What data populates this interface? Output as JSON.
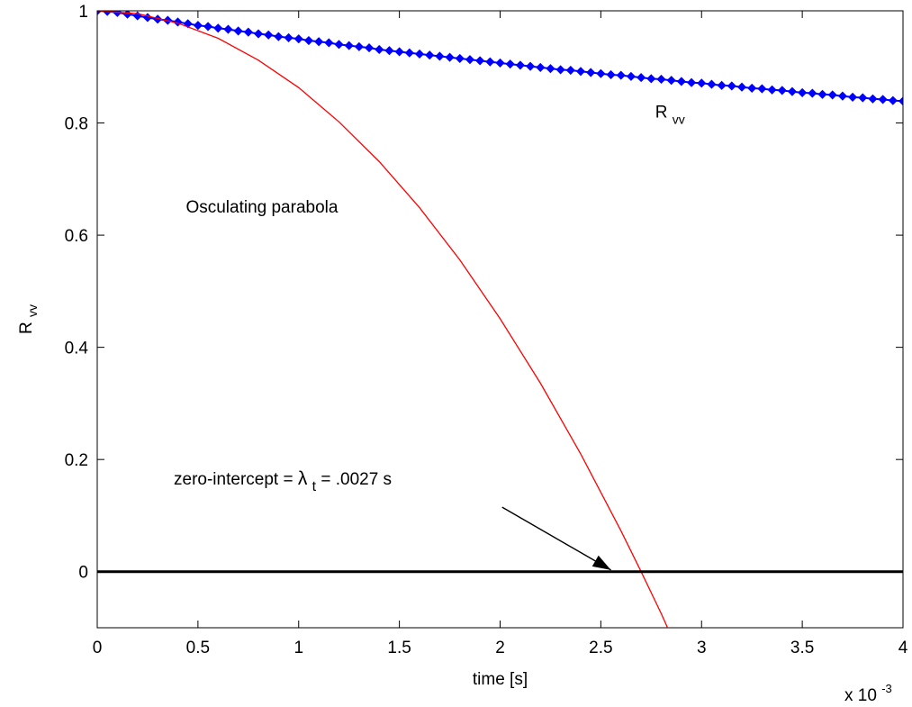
{
  "chart_data": {
    "type": "line",
    "title": "",
    "xlabel": "time [s]",
    "ylabel": {
      "main": "R",
      "sub": "vv"
    },
    "x_exponent": {
      "prefix": "x 10",
      "power": "-3"
    },
    "xlim": [
      0,
      0.004
    ],
    "ylim": [
      -0.1,
      1
    ],
    "x_ticks": [
      0,
      0.0005,
      0.001,
      0.0015,
      0.002,
      0.0025,
      0.003,
      0.0035,
      0.004
    ],
    "x_tick_labels": [
      "0",
      "0.5",
      "1",
      "1.5",
      "2",
      "2.5",
      "3",
      "3.5",
      "4"
    ],
    "y_ticks": [
      0,
      0.2,
      0.4,
      0.6,
      0.8,
      1
    ],
    "y_tick_labels": [
      "0",
      "0.2",
      "0.4",
      "0.6",
      "0.8",
      "1"
    ],
    "grid": false,
    "series": [
      {
        "name": "R_vv",
        "color": "#0000ff",
        "marker": "diamond",
        "x_start": 0,
        "x_step": 5e-05,
        "values": [
          1.0,
          0.999,
          0.997,
          0.994,
          0.991,
          0.988,
          0.985,
          0.983,
          0.98,
          0.977,
          0.974,
          0.972,
          0.969,
          0.967,
          0.964,
          0.962,
          0.959,
          0.957,
          0.954,
          0.952,
          0.95,
          0.947,
          0.945,
          0.943,
          0.94,
          0.938,
          0.936,
          0.934,
          0.931,
          0.929,
          0.927,
          0.925,
          0.923,
          0.921,
          0.919,
          0.917,
          0.915,
          0.913,
          0.911,
          0.909,
          0.907,
          0.905,
          0.903,
          0.901,
          0.899,
          0.897,
          0.895,
          0.894,
          0.892,
          0.89,
          0.888,
          0.886,
          0.885,
          0.883,
          0.881,
          0.879,
          0.878,
          0.876,
          0.874,
          0.872,
          0.871,
          0.869,
          0.867,
          0.866,
          0.864,
          0.862,
          0.861,
          0.859,
          0.858,
          0.856,
          0.854,
          0.853,
          0.851,
          0.85,
          0.848,
          0.846,
          0.845,
          0.843,
          0.842,
          0.84,
          0.839
        ]
      },
      {
        "name": "Osculating parabola",
        "color": "#ff0000",
        "marker": "none",
        "x": [
          0,
          0.0002,
          0.0004,
          0.0006,
          0.0008,
          0.001,
          0.0012,
          0.0014,
          0.0016,
          0.0018,
          0.002,
          0.0022,
          0.0024,
          0.0026,
          0.0027,
          0.0028,
          0.00283
        ],
        "values": [
          1.0,
          0.995,
          0.978,
          0.951,
          0.912,
          0.863,
          0.802,
          0.731,
          0.649,
          0.556,
          0.451,
          0.336,
          0.21,
          0.073,
          0.0,
          -0.075,
          -0.099
        ]
      },
      {
        "name": "zero line",
        "color": "#000000",
        "marker": "none",
        "x": [
          0,
          0.004
        ],
        "values": [
          0,
          0
        ]
      }
    ],
    "annotations": {
      "rvv_label": {
        "main": "R",
        "sub": "vv",
        "x": 0.00277,
        "y": 0.81
      },
      "parabola_label": {
        "text": "Osculating parabola",
        "x": 0.00044,
        "y": 0.64
      },
      "intercept_label": {
        "prefix": "zero-intercept = ",
        "symbol": "λ",
        "sub": "t",
        "suffix": " = .0027 s",
        "x": 0.00038,
        "y": 0.155
      },
      "arrow": {
        "from": [
          0.00201,
          0.115
        ],
        "to": [
          0.00255,
          0.003
        ]
      }
    }
  }
}
